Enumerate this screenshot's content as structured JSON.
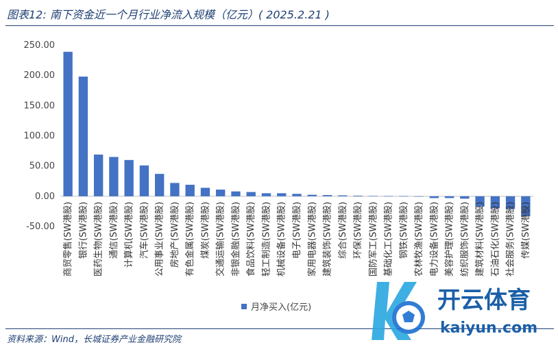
{
  "header": {
    "title": "图表12:  南下资金近一个月行业净流入规模（亿元）( 2025.2.21 )"
  },
  "footer": {
    "source": "资料来源：Wind，长城证券产业金融研究院"
  },
  "watermark": {
    "brand_cn": "开云体育",
    "brand_url": "kaiyun.com"
  },
  "colors": {
    "bar": "#4472c4",
    "axis": "#bfbfbf",
    "text": "#1f3f73"
  },
  "chart_data": {
    "type": "bar",
    "categories": [
      "商贸零售(SW港股)",
      "银行(SW港股)",
      "医药生物(SW港股)",
      "通信(SW港股)",
      "计算机(SW港股)",
      "汽车(SW港股)",
      "公用事业(SW港股)",
      "房地产(SW港股)",
      "有色金属(SW港股)",
      "煤炭(SW港股)",
      "交通运输(SW港股)",
      "非银金融(SW港股)",
      "食品饮料(SW港股)",
      "轻工制造(SW港股)",
      "机械设备(SW港股)",
      "电子(SW港股)",
      "家用电器(SW港股)",
      "建筑装饰(SW港股)",
      "综合(SW港股)",
      "环保(SW港股)",
      "国防军工(SW港股)",
      "基础化工(SW港股)",
      "钢铁(SW港股)",
      "农林牧渔(SW港股)",
      "电力设备(SW港股)",
      "美容护理(SW港股)",
      "纺织服饰(SW港股)",
      "建筑材料(SW港股)",
      "石油石化(SW港股)",
      "社会服务(SW港股)",
      "传媒(SW港股)"
    ],
    "series": [
      {
        "name": "月净买入(亿元)",
        "values": [
          239,
          198,
          69,
          65,
          60,
          51,
          37,
          22,
          19,
          14,
          11,
          8,
          7,
          5,
          5,
          4,
          2.5,
          2,
          1.5,
          1,
          0.5,
          0.3,
          0.2,
          -0.5,
          -3,
          -3,
          -4,
          -17,
          -20,
          -21,
          -33
        ]
      }
    ],
    "y_ticks": [
      "250.00",
      "200.00",
      "150.00",
      "100.00",
      "50.00",
      "0.00",
      "-50.00"
    ],
    "ylim": [
      -50,
      250
    ],
    "xlabel": "",
    "ylabel": "",
    "grid": false,
    "legend_position": "bottom"
  }
}
